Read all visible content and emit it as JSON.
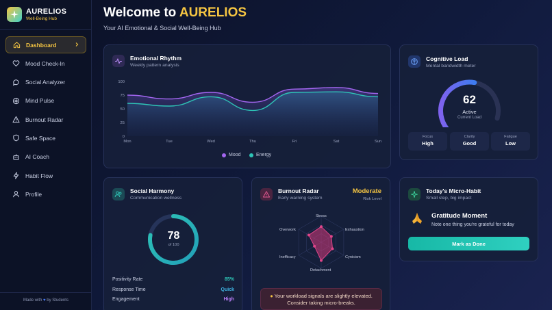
{
  "brand": {
    "title": "AURELIOS",
    "subtitle": "Well-Being Hub"
  },
  "sidebar": {
    "items": [
      {
        "label": "Dashboard",
        "icon": "home-icon",
        "active": true
      },
      {
        "label": "Mood Check-In",
        "icon": "heart-icon"
      },
      {
        "label": "Social Analyzer",
        "icon": "chat-icon"
      },
      {
        "label": "Mind Pulse",
        "icon": "brain-icon"
      },
      {
        "label": "Burnout Radar",
        "icon": "warning-icon"
      },
      {
        "label": "Safe Space",
        "icon": "shield-icon"
      },
      {
        "label": "AI Coach",
        "icon": "robot-icon"
      },
      {
        "label": "Habit Flow",
        "icon": "lightning-icon"
      },
      {
        "label": "Profile",
        "icon": "user-icon"
      }
    ],
    "footer": {
      "made_with": "Made with",
      "by": "by Students"
    }
  },
  "header": {
    "welcome_prefix": "Welcome to ",
    "welcome_brand": "AURELIOS",
    "subtitle": "Your AI Emotional & Social Well-Being Hub"
  },
  "emotional_rhythm": {
    "title": "Emotional Rhythm",
    "subtitle": "Weekly pattern analysis",
    "legend": {
      "mood": "Mood",
      "energy": "Energy"
    }
  },
  "chart_data": {
    "type": "area",
    "categories": [
      "Mon",
      "Tue",
      "Wed",
      "Thu",
      "Fri",
      "Sat",
      "Sun"
    ],
    "y_ticks": [
      "100",
      "75",
      "50",
      "25",
      "0"
    ],
    "ylim": [
      0,
      100
    ],
    "grid": false,
    "legend_position": "bottom",
    "series": [
      {
        "name": "Mood",
        "color": "#a366f0",
        "values": [
          75,
          68,
          80,
          62,
          86,
          89,
          78
        ]
      },
      {
        "name": "Energy",
        "color": "#2ec4b6",
        "values": [
          60,
          55,
          72,
          47,
          80,
          81,
          72
        ]
      }
    ]
  },
  "cognitive_load": {
    "title": "Cognitive Load",
    "subtitle": "Mental bandwidth meter",
    "value": "62",
    "value_fraction": 0.62,
    "status": "Active",
    "caption": "Current Load",
    "stats": [
      {
        "label": "Focus",
        "value": "High"
      },
      {
        "label": "Clarity",
        "value": "Good"
      },
      {
        "label": "Fatigue",
        "value": "Low"
      }
    ]
  },
  "social_harmony": {
    "title": "Social Harmony",
    "subtitle": "Communication wellness",
    "score": "78",
    "score_fraction": 0.78,
    "score_of": "of 100",
    "rows": [
      {
        "label": "Positivity Rate",
        "value": "85%",
        "color": "#2ec4b6"
      },
      {
        "label": "Response Time",
        "value": "Quick",
        "color": "#3fb2e0"
      },
      {
        "label": "Engagement",
        "value": "High",
        "color": "#b77cf5"
      }
    ]
  },
  "burnout_radar": {
    "title": "Burnout Radar",
    "subtitle": "Early warning system",
    "level": "Moderate",
    "level_caption": "Risk Level",
    "axes": [
      "Stress",
      "Exhaustion",
      "Cynicism",
      "Detachment",
      "Inefficacy",
      "Overwork"
    ],
    "values": [
      0.6,
      0.45,
      0.5,
      0.7,
      0.3,
      0.55
    ],
    "notice": "Your workload signals are slightly elevated. Consider taking micro-breaks."
  },
  "micro_habit": {
    "title": "Today's Micro-Habit",
    "subtitle": "Small step, big impact",
    "habit_title": "Gratitude Moment",
    "habit_text": "Note one thing you're grateful for today",
    "button_label": "Mark as Done"
  },
  "colors": {
    "accent_gold": "#f5c542",
    "teal": "#2ec4b6",
    "purple": "#a366f0",
    "pink": "#d4387a"
  }
}
